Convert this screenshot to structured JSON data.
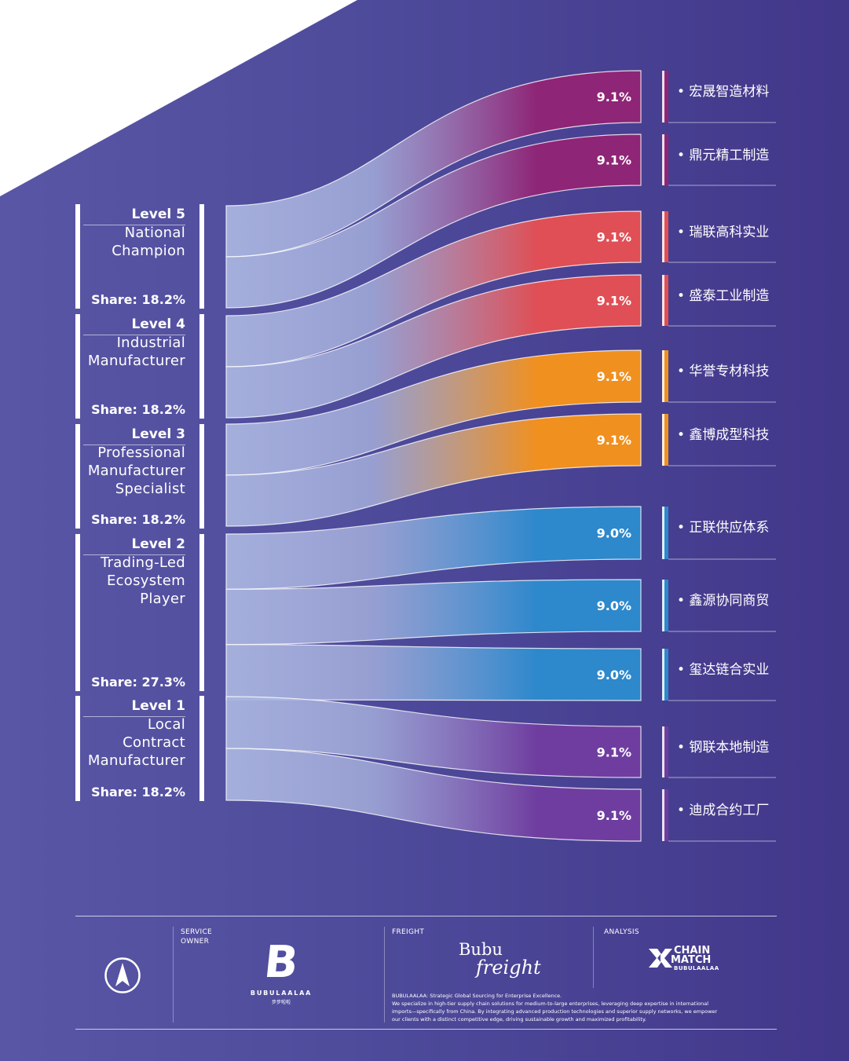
{
  "colors": {
    "background": "#4f4c9c",
    "corner": "#ffffff",
    "node": "#ffffff",
    "magenta": "#8e2576",
    "red": "#df4f55",
    "orange": "#f0901f",
    "blue": "#2d88cc",
    "purple": "#6f3d9f"
  },
  "levels": [
    {
      "name": "Level 5",
      "desc": [
        "National",
        "Champion"
      ],
      "share": "Share: 18.2%"
    },
    {
      "name": "Level 4",
      "desc": [
        "Industrial",
        "Manufacturer"
      ],
      "share": "Share: 18.2%"
    },
    {
      "name": "Level 3",
      "desc": [
        "Professional",
        "Manufacturer",
        "Specialist"
      ],
      "share": "Share: 18.2%"
    },
    {
      "name": "Level 2",
      "desc": [
        "Trading-Led",
        "Ecosystem",
        "Player"
      ],
      "share": "Share: 27.3%"
    },
    {
      "name": "Level 1",
      "desc": [
        "Local",
        "Contract",
        "Manufacturer"
      ],
      "share": "Share: 18.2%"
    }
  ],
  "chart_data": {
    "type": "sankey",
    "sources": [
      "Level 5",
      "Level 4",
      "Level 3",
      "Level 2",
      "Level 1"
    ],
    "source_shares": [
      18.2,
      18.2,
      18.2,
      27.3,
      18.2
    ],
    "flows": [
      {
        "source": "Level 5",
        "target": "宏晟智造材料",
        "value": 9.1,
        "label": "9.1%",
        "target_label": "• 宏晟智造材料"
      },
      {
        "source": "Level 5",
        "target": "鼎元精工制造",
        "value": 9.1,
        "label": "9.1%",
        "target_label": "• 鼎元精工制造"
      },
      {
        "source": "Level 4",
        "target": "瑞联高科实业",
        "value": 9.1,
        "label": "9.1%",
        "target_label": "• 瑞联高科实业"
      },
      {
        "source": "Level 4",
        "target": "盛泰工业制造",
        "value": 9.1,
        "label": "9.1%",
        "target_label": "• 盛泰工业制造"
      },
      {
        "source": "Level 3",
        "target": "华誉专材科技",
        "value": 9.1,
        "label": "9.1%",
        "target_label": "• 华誉专材科技"
      },
      {
        "source": "Level 3",
        "target": "鑫博成型科技",
        "value": 9.1,
        "label": "9.1%",
        "target_label": "• 鑫博成型科技"
      },
      {
        "source": "Level 2",
        "target": "正联供应体系",
        "value": 9.0,
        "label": "9.0%",
        "target_label": "• 正联供应体系"
      },
      {
        "source": "Level 2",
        "target": "鑫源协同商贸",
        "value": 9.0,
        "label": "9.0%",
        "target_label": "• 鑫源协同商贸"
      },
      {
        "source": "Level 2",
        "target": "玺达链合实业",
        "value": 9.0,
        "label": "9.0%",
        "target_label": "• 玺达链合实业"
      },
      {
        "source": "Level 1",
        "target": "钢联本地制造",
        "value": 9.1,
        "label": "9.1%",
        "target_label": "• 钢联本地制造"
      },
      {
        "source": "Level 1",
        "target": "迪成合约工厂",
        "value": 9.1,
        "label": "9.1%",
        "target_label": "• 迪成合约工厂"
      }
    ],
    "source_color": "#a9b4df",
    "flow_colors": [
      "#8e2576",
      "#8e2576",
      "#df4f55",
      "#df4f55",
      "#f0901f",
      "#f0901f",
      "#2d88cc",
      "#2d88cc",
      "#2d88cc",
      "#6f3d9f",
      "#6f3d9f"
    ]
  },
  "footer": {
    "service_caption": [
      "SERVICE",
      "OWNER"
    ],
    "freight_caption": "FREIGHT",
    "analysis_caption": "ANALYSIS",
    "logo_letter": "B",
    "logo_word": "BUBULAALAA",
    "logo_sub": "步步啦啦",
    "freight_top": "Bubu",
    "freight_script": "freight",
    "chain_line1": "CHAIN",
    "chain_line2": "MATCH",
    "chain_sub": "BUBULAALAA",
    "blurb": [
      "BUBULAALAA: Strategic Global Sourcing for Enterprise Excellence.",
      "We specialize in high-tier supply chain solutions for medium-to-large enterprises, leveraging deep expertise in international",
      "imports—specifically from China. By integrating advanced production technologies and superior supply networks, we empower",
      "our clients with a distinct competitive edge, driving sustainable growth and maximized profitability."
    ]
  }
}
